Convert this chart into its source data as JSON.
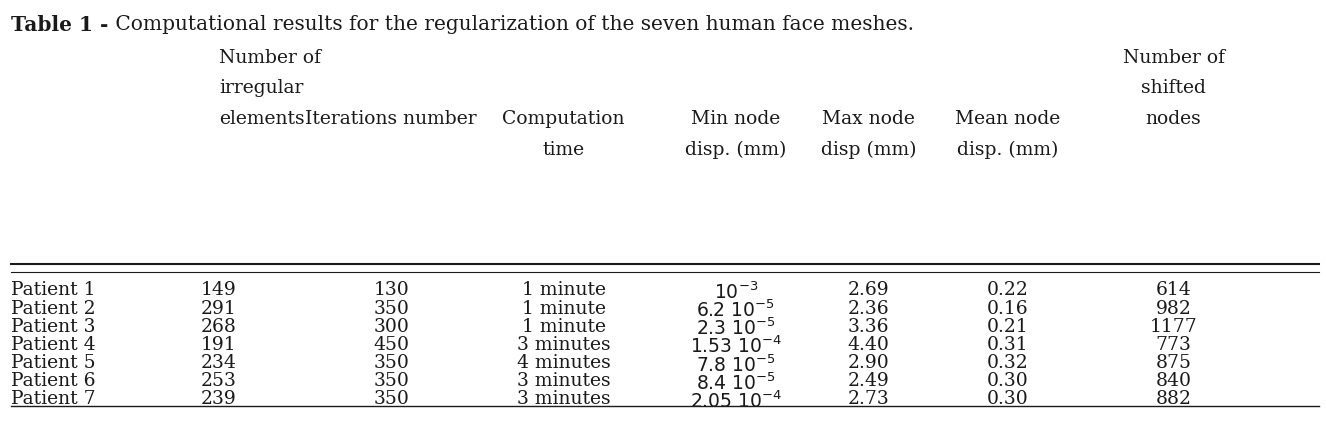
{
  "title_bold": "Table 1 - ",
  "title_rest": " Computational results for the regularization of the seven human face meshes.",
  "row_labels": [
    "Patient 1",
    "Patient 2",
    "Patient 3",
    "Patient 4",
    "Patient 5",
    "Patient 6",
    "Patient 7"
  ],
  "col_data": {
    "irregular_elements": [
      "149",
      "291",
      "268",
      "191",
      "234",
      "253",
      "239"
    ],
    "iterations": [
      "130",
      "350",
      "300",
      "450",
      "350",
      "350",
      "350"
    ],
    "comp_time": [
      "1 minute",
      "1 minute",
      "1 minute",
      "3 minutes",
      "4 minutes",
      "3 minutes",
      "3 minutes"
    ],
    "min_node_disp": [
      "$10^{-3}$",
      "$6.2\\ 10^{-5}$",
      "$2.3\\ 10^{-5}$",
      "$1.53\\ 10^{-4}$",
      "$7.8\\ 10^{-5}$",
      "$8.4\\ 10^{-5}$",
      "$2.05\\ 10^{-4}$"
    ],
    "max_node_disp": [
      "2.69",
      "2.36",
      "3.36",
      "4.40",
      "2.90",
      "2.49",
      "2.73"
    ],
    "mean_node_disp": [
      "0.22",
      "0.16",
      "0.21",
      "0.31",
      "0.32",
      "0.30",
      "0.30"
    ],
    "shifted_nodes": [
      "614",
      "982",
      "1177",
      "773",
      "875",
      "840",
      "882"
    ]
  },
  "background_color": "#ffffff",
  "text_color": "#1a1a1a",
  "line_color": "#1a1a1a",
  "font_size": 13.5,
  "title_font_size": 14.5
}
